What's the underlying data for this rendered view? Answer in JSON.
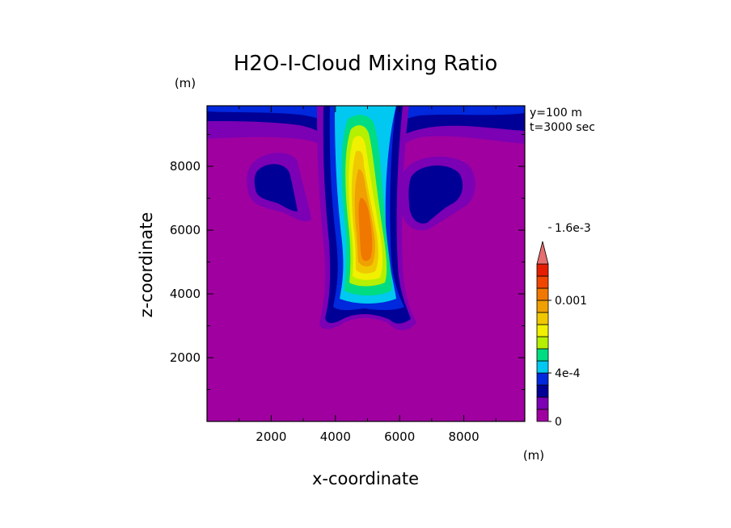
{
  "chart_data": {
    "type": "heatmap",
    "title": "H2O-I-Cloud Mixing Ratio",
    "xlabel": "x-coordinate",
    "ylabel": "z-coordinate",
    "x_unit": "(m)",
    "y_unit": "(m)",
    "xlim": [
      0,
      9900
    ],
    "ylim": [
      0,
      9900
    ],
    "x_ticks": [
      2000,
      4000,
      6000,
      8000
    ],
    "y_ticks": [
      2000,
      4000,
      6000,
      8000
    ],
    "annotations": [
      "y=100 m",
      "t=3000 sec"
    ],
    "colorbar": {
      "levels": [
        0,
        0.0001,
        0.0002,
        0.0003,
        0.0004,
        0.0005,
        0.0006,
        0.0007,
        0.0008,
        0.0009,
        0.001,
        0.0011,
        0.0012,
        0.0013,
        0.0014,
        0.0015,
        0.0016,
        0.0017,
        0.0018
      ],
      "colors": [
        "#a000a0",
        "#7c00b4",
        "#000096",
        "#0028dc",
        "#00c8f0",
        "#00dc82",
        "#b4f000",
        "#f0f000",
        "#f0c800",
        "#f0a000",
        "#f07800",
        "#f04600",
        "#e61e00",
        "#e66e6e"
      ],
      "tick_labels": [
        "0",
        "4e-4",
        "0.001",
        "1.6e-3"
      ],
      "extend": "max"
    },
    "features": [
      {
        "name": "central plume",
        "x_center": 4900,
        "z_range": [
          3000,
          9900
        ],
        "max_value": 0.0015,
        "max_at": [
          5000,
          5600
        ]
      },
      {
        "name": "left lobe",
        "x_center": 2100,
        "z_center": 7400,
        "value": 0.0002
      },
      {
        "name": "right lobe",
        "x_center": 7200,
        "z_center": 7400,
        "value": 0.0002
      },
      {
        "name": "top layer",
        "z_range": [
          9300,
          9900
        ],
        "value": 0.0002
      }
    ]
  }
}
